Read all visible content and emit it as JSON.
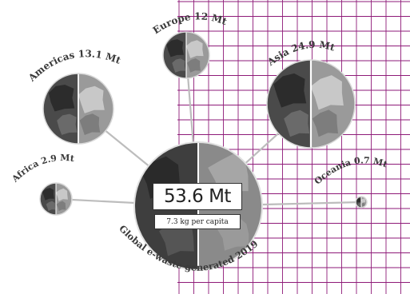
{
  "total": {
    "value": "53.6 Mt",
    "per_capita": "7.3 kg per capita",
    "caption": "Global e-waste generated 2019"
  },
  "regions": [
    {
      "name": "Americas",
      "label": "Americas 13.1 Mt",
      "value_mt": 13.1
    },
    {
      "name": "Europe",
      "label": "Europe 12 Mt",
      "value_mt": 12
    },
    {
      "name": "Asia",
      "label": "Asia 24.9 Mt",
      "value_mt": 24.9
    },
    {
      "name": "Africa",
      "label": "Africa 2.9 Mt",
      "value_mt": 2.9
    },
    {
      "name": "Oceania",
      "label": "Oceania 0.7 Mt",
      "value_mt": 0.7
    }
  ],
  "colors": {
    "grid": "#8e1a78",
    "globe_dark": "#4a4a4a",
    "globe_light": "#9a9a9a",
    "connector": "#bdbdbd"
  }
}
